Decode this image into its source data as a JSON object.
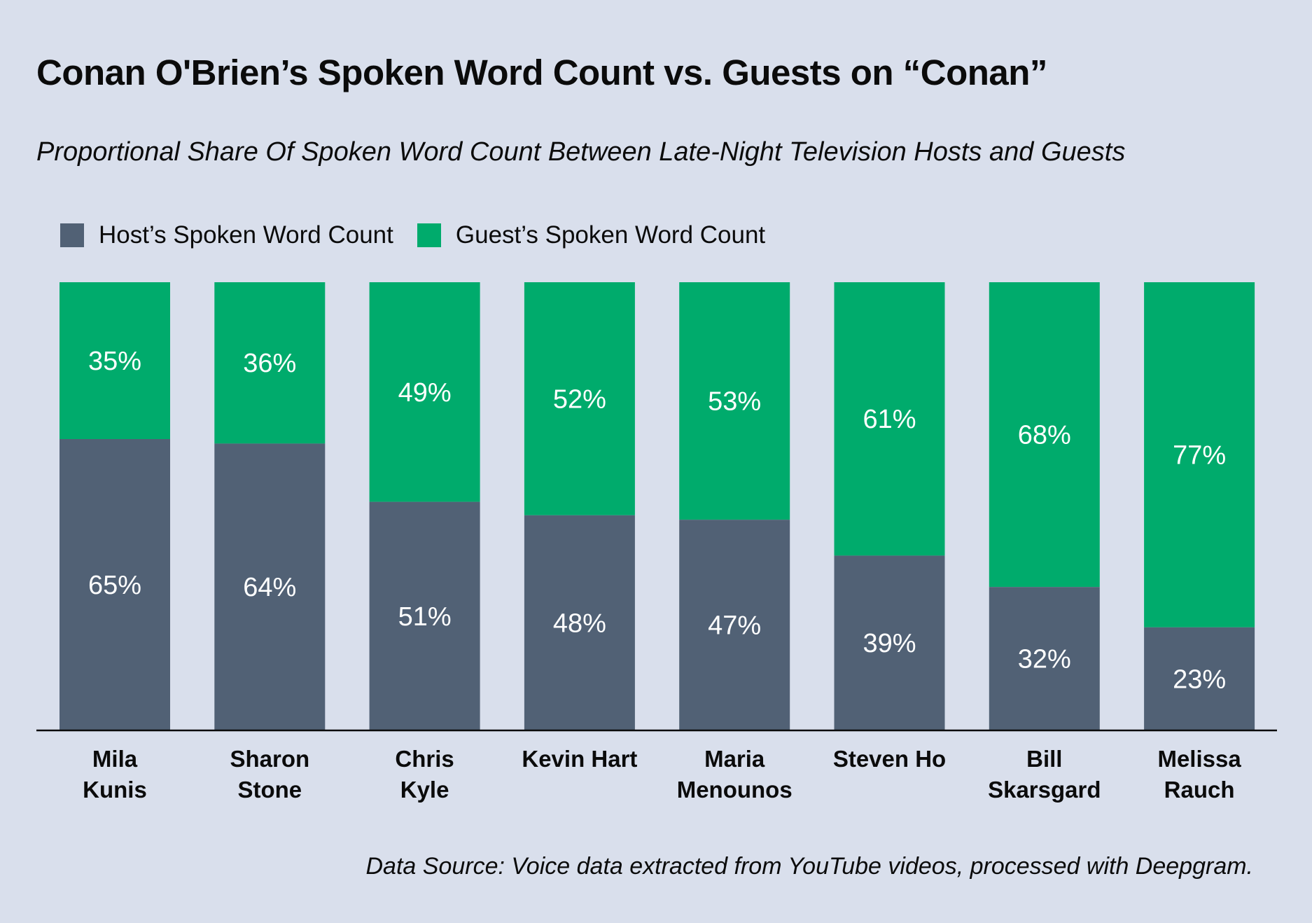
{
  "title": "Conan O'Brien’s Spoken Word Count vs. Guests on “Conan”",
  "subtitle": "Proportional Share Of Spoken Word Count Between Late-Night Television Hosts and Guests",
  "source": "Data Source: Voice data extracted from YouTube videos, processed with Deepgram.",
  "colors": {
    "host": "#516175",
    "guest": "#00ab6c",
    "background": "#d9dfec",
    "axis": "#0b0b0b"
  },
  "chart_data": {
    "type": "bar",
    "stacked": true,
    "categories": [
      [
        "Mila",
        "Kunis"
      ],
      [
        "Sharon",
        "Stone"
      ],
      [
        "Chris",
        "Kyle"
      ],
      [
        "Kevin Hart"
      ],
      [
        "Maria",
        "Menounos"
      ],
      [
        "Steven Ho"
      ],
      [
        "Bill",
        "Skarsgard"
      ],
      [
        "Melissa",
        "Rauch"
      ]
    ],
    "series": [
      {
        "name": "Host’s Spoken Word Count",
        "values": [
          65,
          64,
          51,
          48,
          47,
          39,
          32,
          23
        ],
        "labels": [
          "65%",
          "64%",
          "51%",
          "48%",
          "47%",
          "39%",
          "32%",
          "23%"
        ]
      },
      {
        "name": "Guest’s Spoken Word Count",
        "values": [
          35,
          36,
          49,
          52,
          53,
          61,
          68,
          77
        ],
        "labels": [
          "35%",
          "36%",
          "49%",
          "52%",
          "53%",
          "61%",
          "68%",
          "77%"
        ]
      }
    ],
    "ylim": [
      0,
      100
    ],
    "grid": false,
    "legend": "top-left"
  }
}
